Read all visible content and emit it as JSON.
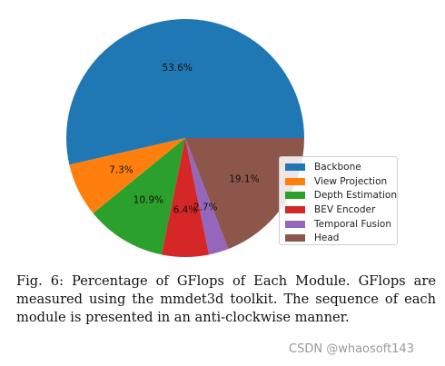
{
  "chart_data": {
    "type": "pie",
    "title": "",
    "direction": "counter-clockwise",
    "start_angle_deg": 0,
    "legend_placement": "right",
    "slices": [
      {
        "name": "Backbone",
        "value": 53.6,
        "label": "53.6%",
        "color": "#1f77b4"
      },
      {
        "name": "View Projection",
        "value": 7.3,
        "label": "7.3%",
        "color": "#ff7f0e"
      },
      {
        "name": "Depth Estimation",
        "value": 10.9,
        "label": "10.9%",
        "color": "#2ca02c"
      },
      {
        "name": "BEV Encoder",
        "value": 6.4,
        "label": "6.4%",
        "color": "#d62728"
      },
      {
        "name": "Temporal Fusion",
        "value": 2.7,
        "label": "2.7%",
        "color": "#9467bd"
      },
      {
        "name": "Head",
        "value": 19.1,
        "label": "19.1%",
        "color": "#8c564b"
      }
    ]
  },
  "caption": "Fig. 6: Percentage of GFlops of Each Module. GFlops are measured using the mmdet3d toolkit. The sequence of each module is presented in an anti-clockwise manner.",
  "watermark": "CSDN @whaosoft143"
}
